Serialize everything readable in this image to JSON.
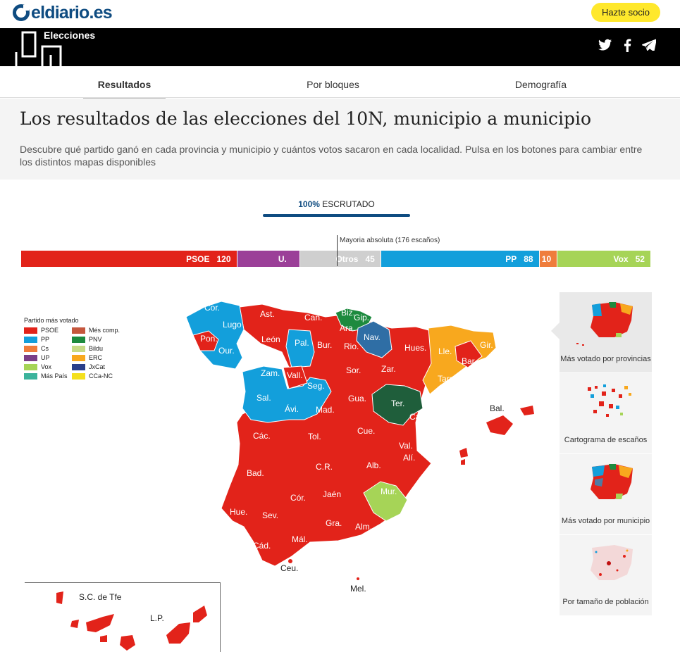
{
  "site": {
    "logo": "eldiario.es",
    "cta": "Hazte socio"
  },
  "banner": {
    "title": "Elecciones",
    "logo_text": "10N"
  },
  "social": {
    "icons": [
      "twitter-icon",
      "facebook-icon",
      "telegram-icon"
    ]
  },
  "tabs": [
    {
      "label": "Resultados",
      "active": true
    },
    {
      "label": "Por bloques",
      "active": false
    },
    {
      "label": "Demografía",
      "active": false
    }
  ],
  "header": {
    "title": "Los resultados de las elecciones del 10N, municipio a municipio",
    "description": "Descubre qué partido ganó en cada provincia y municipio y cuántos votos sacaron en cada localidad. Pulsa en los botones para cambiar entre los distintos mapas disponibles"
  },
  "escrutado": {
    "percent": "100%",
    "label": "ESCRUTADO"
  },
  "seats": {
    "majority_label": "Mayoria absoluta (176 escaños)",
    "total": 350,
    "majority": 176,
    "parties": [
      {
        "name": "PSOE",
        "seats": "120",
        "value": 120,
        "color": "#e2231a"
      },
      {
        "name": "U.",
        "seats": "",
        "value": 35,
        "color": "#9b3f98"
      },
      {
        "name": "Otros",
        "seats": "45",
        "value": 45,
        "color": "#cfcfcf"
      },
      {
        "name": "PP",
        "seats": "88",
        "value": 88,
        "color": "#139fdb"
      },
      {
        "name": "",
        "seats": "10",
        "value": 10,
        "color": "#ef7d3c"
      },
      {
        "name": "Vox",
        "seats": "52",
        "value": 52,
        "color": "#a6d457"
      }
    ]
  },
  "legend": {
    "title": "Partido más votado",
    "items": [
      {
        "name": "PSOE",
        "color": "#e2231a"
      },
      {
        "name": "Més comp.",
        "color": "#c5573d"
      },
      {
        "name": "PP",
        "color": "#139fdb"
      },
      {
        "name": "PNV",
        "color": "#1d8a3e"
      },
      {
        "name": "Cs",
        "color": "#ef7d3c"
      },
      {
        "name": "Bildu",
        "color": "#c6da86"
      },
      {
        "name": "UP",
        "color": "#7b3f88"
      },
      {
        "name": "ERC",
        "color": "#f8a81e"
      },
      {
        "name": "Vox",
        "color": "#a6d457"
      },
      {
        "name": "JxCat",
        "color": "#2a3f8a"
      },
      {
        "name": "Más País",
        "color": "#3bb39b"
      },
      {
        "name": "CCa-NC",
        "color": "#f4e01d"
      }
    ]
  },
  "map": {
    "provinces": [
      "Cor.",
      "Lugo",
      "Ast.",
      "Can.",
      "Bur.",
      "Pon.",
      "Our.",
      "León",
      "Pal.",
      "Rio.",
      "Biz.",
      "Gip.",
      "Ara.",
      "Nav.",
      "Hues.",
      "Lle.",
      "Gir.",
      "Bar.",
      "Tarr.",
      "Zar.",
      "Sor.",
      "Zam.",
      "Vall.",
      "Seg.",
      "Sal.",
      "Ávi.",
      "Mad.",
      "Gua.",
      "Ter.",
      "Cast.",
      "Bal.",
      "Các.",
      "Tol.",
      "Cue.",
      "Val.",
      "Bad.",
      "C.R.",
      "Alb.",
      "Alí.",
      "Cór.",
      "Jaén",
      "Mur.",
      "Hue.",
      "Sev.",
      "Gra.",
      "Alm.",
      "Cád.",
      "Mál.",
      "Ceu.",
      "Mel.",
      "S.C. de Tfe",
      "L.P."
    ]
  },
  "panel": [
    {
      "label": "Más votado por provincias",
      "active": true
    },
    {
      "label": "Cartograma de escaños",
      "active": false
    },
    {
      "label": "Más votado por municipio",
      "active": false
    },
    {
      "label": "Por tamaño de población",
      "active": false
    }
  ]
}
